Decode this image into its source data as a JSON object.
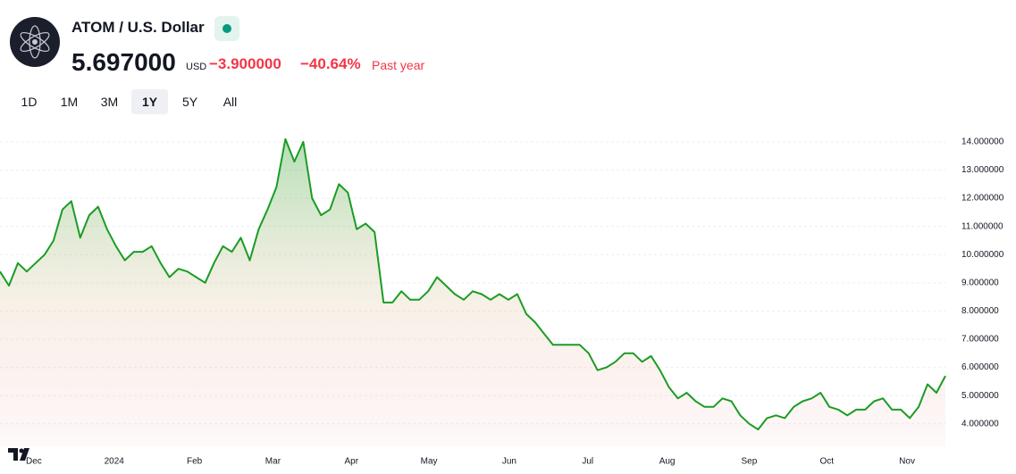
{
  "header": {
    "title": "ATOM / U.S. Dollar",
    "price": "5.697000",
    "currency": "USD",
    "change": "−3.900000",
    "change_percent": "−40.64%",
    "period": "Past year"
  },
  "tabs": {
    "items": [
      "1D",
      "1M",
      "3M",
      "1Y",
      "5Y",
      "All"
    ],
    "active": "1Y"
  },
  "chart_data": {
    "type": "area",
    "color": "#1a9c24",
    "values": [
      9.4,
      8.9,
      9.7,
      9.4,
      9.7,
      10.0,
      10.5,
      11.6,
      11.9,
      10.6,
      11.4,
      11.7,
      10.9,
      10.3,
      9.8,
      10.1,
      10.1,
      10.3,
      9.7,
      9.2,
      9.5,
      9.4,
      9.2,
      9.0,
      9.7,
      10.3,
      10.1,
      10.6,
      9.8,
      10.9,
      11.6,
      12.4,
      14.1,
      13.3,
      14.0,
      12.0,
      11.4,
      11.6,
      12.5,
      12.2,
      10.9,
      11.1,
      10.8,
      8.3,
      8.3,
      8.7,
      8.4,
      8.4,
      8.7,
      9.2,
      8.9,
      8.6,
      8.4,
      8.7,
      8.6,
      8.4,
      8.6,
      8.4,
      8.6,
      7.9,
      7.6,
      7.2,
      6.8,
      6.8,
      6.8,
      6.8,
      6.5,
      5.9,
      6.0,
      6.2,
      6.5,
      6.5,
      6.2,
      6.4,
      5.9,
      5.3,
      4.9,
      5.1,
      4.8,
      4.6,
      4.6,
      4.9,
      4.8,
      4.3,
      4.0,
      3.8,
      4.2,
      4.3,
      4.2,
      4.6,
      4.8,
      4.9,
      5.1,
      4.6,
      4.5,
      4.3,
      4.5,
      4.5,
      4.8,
      4.9,
      4.5,
      4.5,
      4.2,
      4.6,
      5.4,
      5.1,
      5.697
    ],
    "xlim": [
      0,
      106
    ],
    "xticks": [
      {
        "value": 3.8,
        "label": "Dec"
      },
      {
        "value": 12.8,
        "label": "2024"
      },
      {
        "value": 21.8,
        "label": "Feb"
      },
      {
        "value": 30.6,
        "label": "Mar"
      },
      {
        "value": 39.4,
        "label": "Apr"
      },
      {
        "value": 48.1,
        "label": "May"
      },
      {
        "value": 57.1,
        "label": "Jun"
      },
      {
        "value": 65.9,
        "label": "Jul"
      },
      {
        "value": 74.8,
        "label": "Aug"
      },
      {
        "value": 84.0,
        "label": "Sep"
      },
      {
        "value": 92.7,
        "label": "Oct"
      },
      {
        "value": 101.7,
        "label": "Nov"
      }
    ],
    "ylim": [
      3.2,
      14.6
    ],
    "yticks": [
      {
        "value": 4,
        "label": "4.000000"
      },
      {
        "value": 5,
        "label": "5.000000"
      },
      {
        "value": 6,
        "label": "6.000000"
      },
      {
        "value": 7,
        "label": "7.000000"
      },
      {
        "value": 8,
        "label": "8.000000"
      },
      {
        "value": 9,
        "label": "9.000000"
      },
      {
        "value": 10,
        "label": "10.000000"
      },
      {
        "value": 11,
        "label": "11.000000"
      },
      {
        "value": 12,
        "label": "12.000000"
      },
      {
        "value": 13,
        "label": "13.000000"
      },
      {
        "value": 14,
        "label": "14.000000"
      }
    ],
    "grid": true
  }
}
